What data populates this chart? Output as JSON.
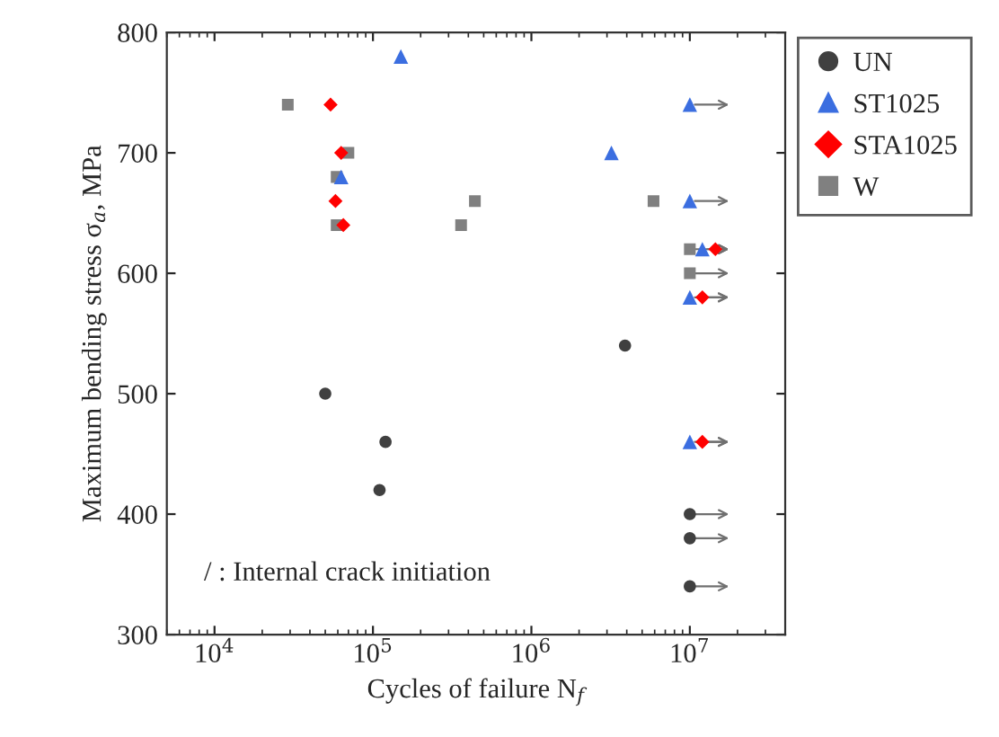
{
  "chart_data": {
    "type": "scatter",
    "xlabel": "Cycles of failure N$_{f}$",
    "ylabel": "Maximum bending stress σ$_{a}$, MPa",
    "annotations": [
      "/ : Internal crack initiation"
    ],
    "log": "x",
    "grid": false,
    "legend": "right",
    "xlim": [
      5000,
      40000000
    ],
    "xticks": [
      {
        "value": 10000,
        "label": "10$^{4}$"
      },
      {
        "value": 100000,
        "label": "10$^{5}$"
      },
      {
        "value": 1000000,
        "label": "10$^{6}$"
      },
      {
        "value": 10000000,
        "label": "10$^{7}$"
      }
    ],
    "ylim": [
      300,
      800
    ],
    "yticks": [
      300,
      400,
      500,
      600,
      700,
      800
    ],
    "series": [
      {
        "name": "UN",
        "color": "#404040",
        "marker": "circle",
        "x": [
          50000,
          120000,
          110000,
          3900000,
          10000000,
          10000000,
          10000000
        ],
        "values": [
          500,
          460,
          420,
          540,
          400,
          380,
          340
        ]
      },
      {
        "name": "ST1025",
        "color": "#3b6ee0",
        "marker": "triangle",
        "x": [
          150000,
          63000,
          3200000,
          10000000,
          10000000,
          10000000,
          10000000,
          12000000
        ],
        "values": [
          780,
          680,
          700,
          740,
          660,
          580,
          460,
          620
        ]
      },
      {
        "name": "STA1025",
        "color": "#ff0000",
        "marker": "diamond",
        "x": [
          54000,
          63000,
          58000,
          65000,
          14500000,
          12000000,
          12000000
        ],
        "values": [
          740,
          700,
          660,
          640,
          620,
          580,
          460
        ]
      },
      {
        "name": "W",
        "color": "#808080",
        "marker": "square",
        "x": [
          29000,
          70000,
          59000,
          59000,
          440000,
          360000,
          5900000,
          10000000,
          10000000
        ],
        "values": [
          740,
          700,
          680,
          640,
          660,
          640,
          660,
          620,
          600
        ]
      }
    ]
  }
}
